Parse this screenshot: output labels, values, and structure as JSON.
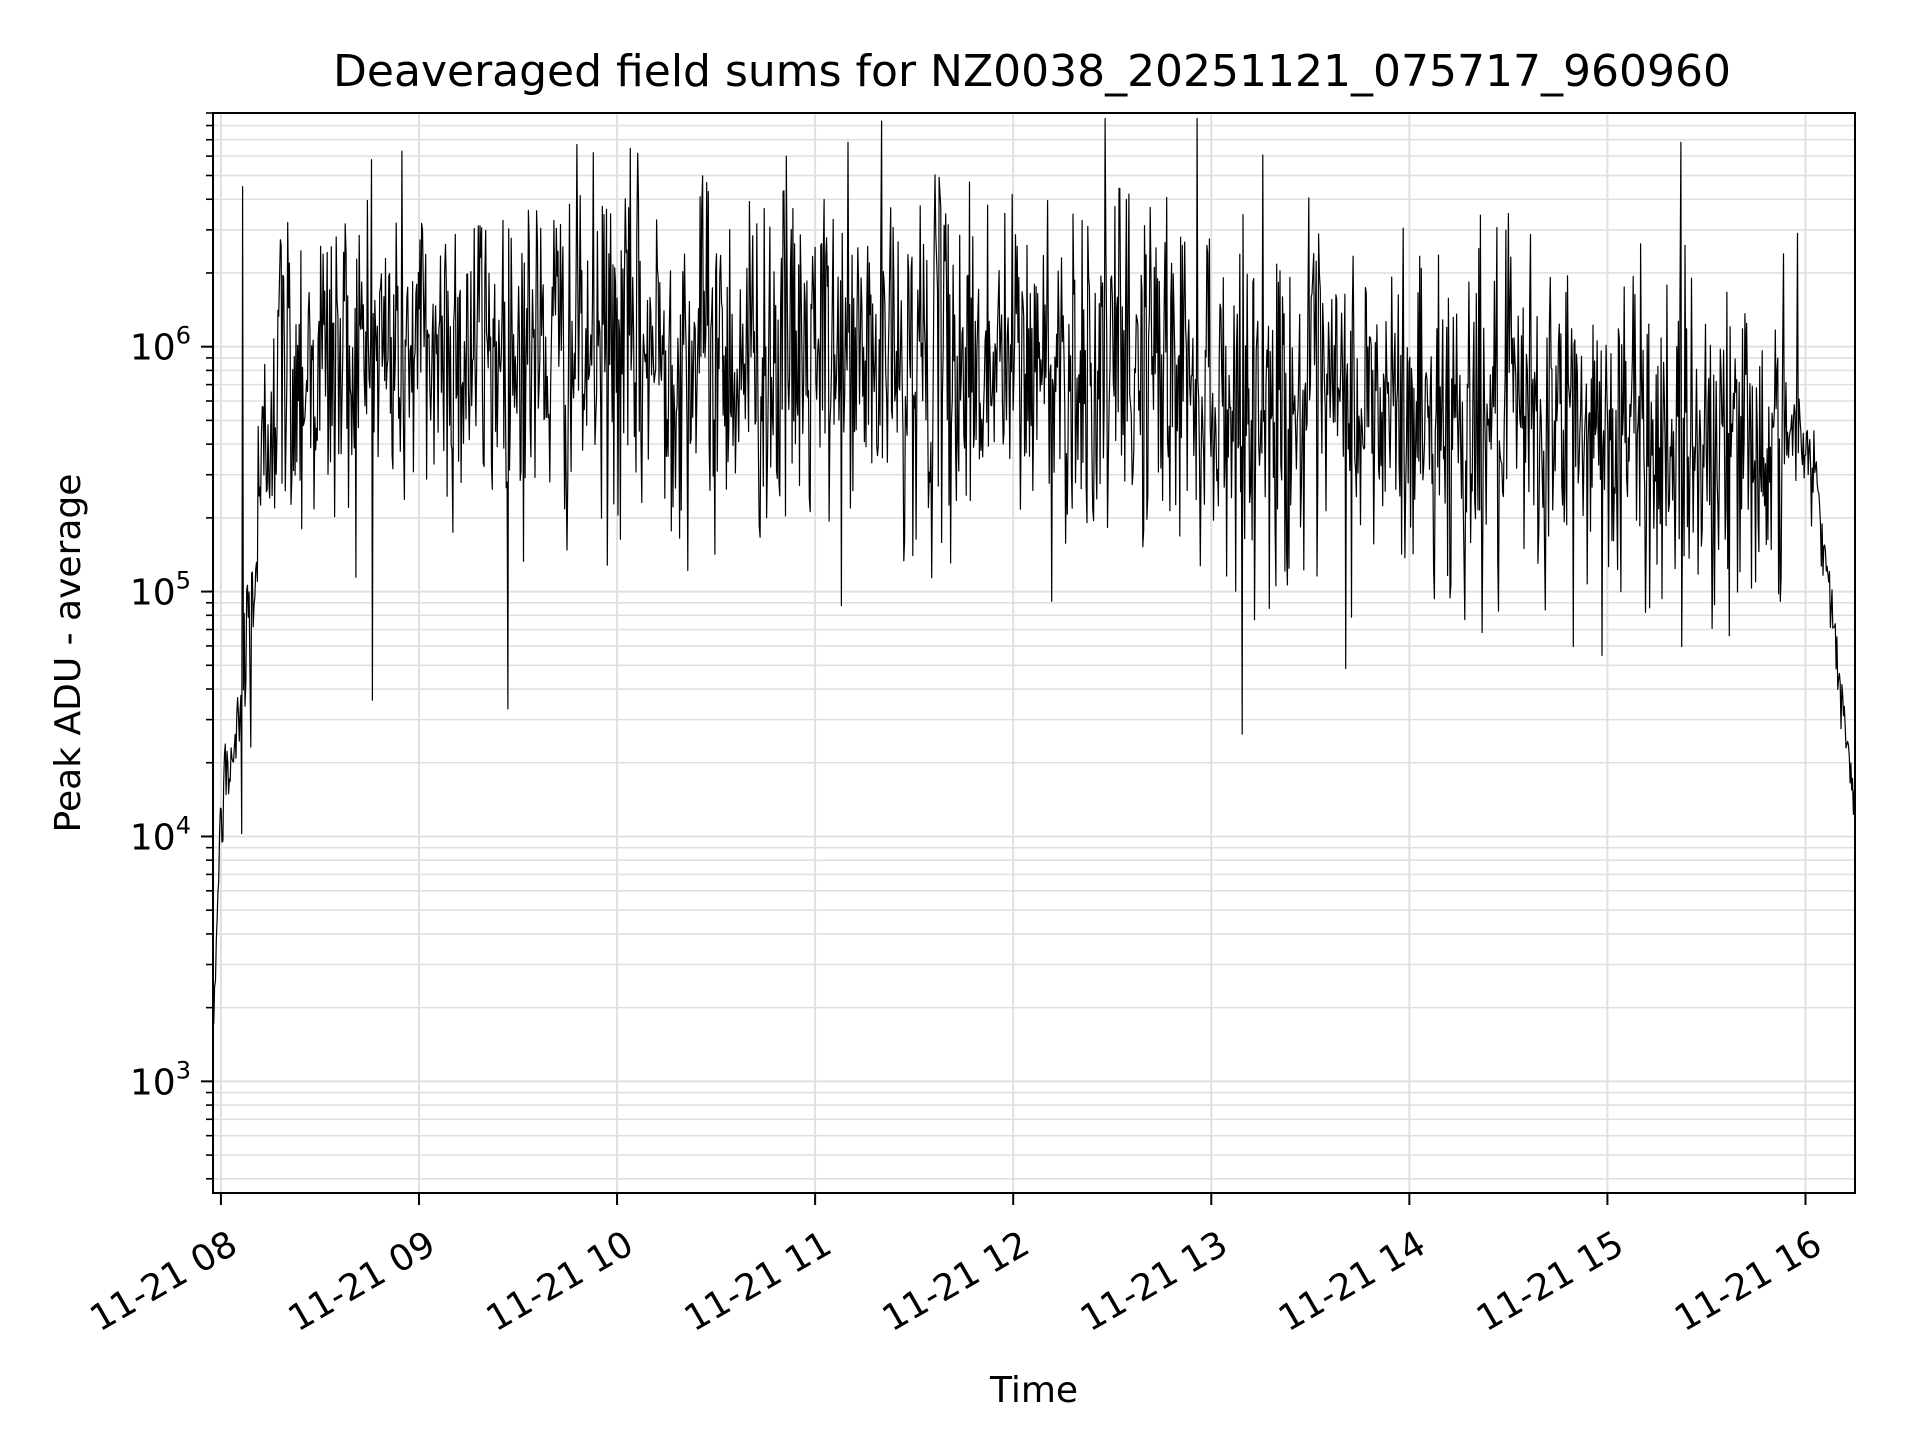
{
  "chart_data": {
    "type": "line",
    "title": "Deaveraged field sums for NZ0038_20251121_075717_960960",
    "xlabel": "Time",
    "ylabel": "Peak ADU - average",
    "yscale": "log",
    "ylim": [
      350,
      9000000
    ],
    "xlim_hours": [
      7.96,
      16.25
    ],
    "grid": true,
    "colors": {
      "line": "#000000",
      "grid": "#e0e0e0",
      "axes": "#000000",
      "background": "#ffffff"
    },
    "x_ticks": [
      {
        "hour": 8,
        "label": "11-21 08"
      },
      {
        "hour": 9,
        "label": "11-21 09"
      },
      {
        "hour": 10,
        "label": "11-21 10"
      },
      {
        "hour": 11,
        "label": "11-21 11"
      },
      {
        "hour": 12,
        "label": "11-21 12"
      },
      {
        "hour": 13,
        "label": "11-21 13"
      },
      {
        "hour": 14,
        "label": "11-21 14"
      },
      {
        "hour": 15,
        "label": "11-21 15"
      },
      {
        "hour": 16,
        "label": "11-21 16"
      }
    ],
    "y_ticks": [
      {
        "value": 1000,
        "base": "10",
        "exp": "3"
      },
      {
        "value": 10000,
        "base": "10",
        "exp": "4"
      },
      {
        "value": 100000,
        "base": "10",
        "exp": "5"
      },
      {
        "value": 1000000,
        "base": "10",
        "exp": "6"
      }
    ],
    "series_envelope": {
      "name": "Peak ADU - average",
      "start_hour": 7.96,
      "end_hour": 16.25,
      "approx_samples": 2000,
      "segments": [
        {
          "from_hour": 7.96,
          "to_hour": 8.0,
          "from_value": 1500,
          "to_value": 13000,
          "noise_dex": 0.05
        },
        {
          "from_hour": 8.0,
          "to_hour": 8.1,
          "from_value": 13000,
          "to_value": 30000,
          "noise_dex": 0.12
        },
        {
          "from_hour": 8.1,
          "to_hour": 8.25,
          "from_value": 30000,
          "to_value": 600000,
          "noise_dex": 0.3
        },
        {
          "from_hour": 8.25,
          "to_hour": 9.0,
          "from_value": 800000,
          "to_value": 1000000,
          "noise_dex": 0.35
        },
        {
          "from_hour": 9.0,
          "to_hour": 13.0,
          "from_value": 1000000,
          "to_value": 800000,
          "noise_dex": 0.35
        },
        {
          "from_hour": 13.0,
          "to_hour": 15.9,
          "from_value": 600000,
          "to_value": 400000,
          "noise_dex": 0.35
        },
        {
          "from_hour": 15.9,
          "to_hour": 16.05,
          "from_value": 500000,
          "to_value": 320000,
          "noise_dex": 0.1
        },
        {
          "from_hour": 16.05,
          "to_hour": 16.25,
          "from_value": 320000,
          "to_value": 12000,
          "noise_dex": 0.06
        }
      ],
      "peaks": [
        {
          "hour": 8.11,
          "value": 4500000
        },
        {
          "hour": 8.76,
          "value": 5800000
        },
        {
          "hour": 10.46,
          "value": 4300000
        },
        {
          "hour": 12.69,
          "value": 3700000
        },
        {
          "hour": 15.96,
          "value": 2900000
        }
      ]
    }
  }
}
